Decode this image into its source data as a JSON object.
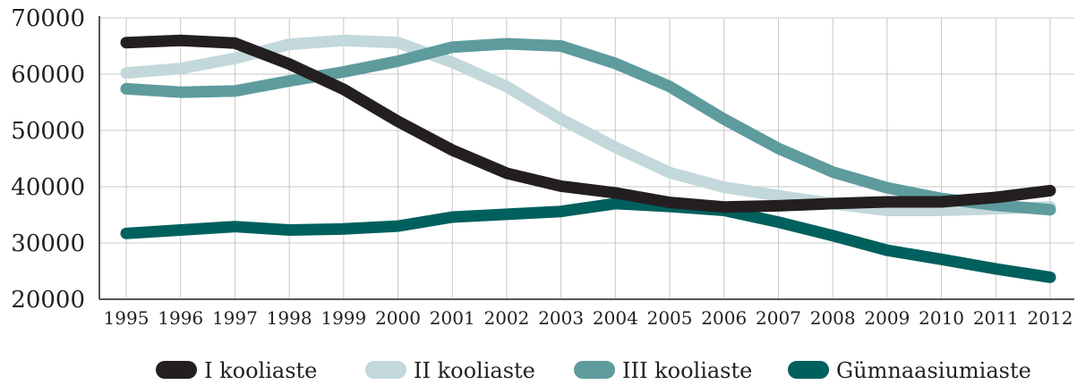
{
  "chart_data": {
    "type": "line",
    "title": "",
    "xlabel": "",
    "ylabel": "",
    "ylim": [
      20000,
      70000
    ],
    "yticks": [
      "70000",
      "60000",
      "50000",
      "40000",
      "30000",
      "20000"
    ],
    "ytick_values": [
      70000,
      60000,
      50000,
      40000,
      30000,
      20000
    ],
    "categories": [
      "1995",
      "1996",
      "1997",
      "1998",
      "1999",
      "2000",
      "2001",
      "2002",
      "2003",
      "2004",
      "2005",
      "2006",
      "2007",
      "2008",
      "2009",
      "2010",
      "2011",
      "2012"
    ],
    "grid": true,
    "legend_position": "bottom",
    "series": [
      {
        "name": "I kooliaste",
        "color": "#231f20",
        "values": [
          65600,
          66000,
          65500,
          61800,
          57300,
          51600,
          46500,
          42400,
          40100,
          38900,
          37200,
          36400,
          36600,
          37000,
          37300,
          37300,
          38100,
          39300
        ]
      },
      {
        "name": "II kooliaste",
        "color": "#c2d8da",
        "values": [
          60200,
          61000,
          62800,
          65300,
          66000,
          65600,
          62100,
          57800,
          52000,
          47000,
          42500,
          39900,
          38400,
          37000,
          35800,
          35800,
          36100,
          36400
        ]
      },
      {
        "name": "III kooliaste",
        "color": "#5e9b9d",
        "values": [
          57400,
          56800,
          57000,
          58800,
          60400,
          62300,
          64800,
          65400,
          65000,
          61900,
          57800,
          52000,
          46800,
          42600,
          39800,
          37900,
          36700,
          35900
        ]
      },
      {
        "name": "Gümnaasiumiaste",
        "color": "#00605d",
        "values": [
          31700,
          32300,
          32900,
          32300,
          32500,
          33000,
          34600,
          35100,
          35600,
          37000,
          36500,
          35800,
          33700,
          31300,
          28700,
          27100,
          25400,
          23900
        ]
      }
    ]
  }
}
